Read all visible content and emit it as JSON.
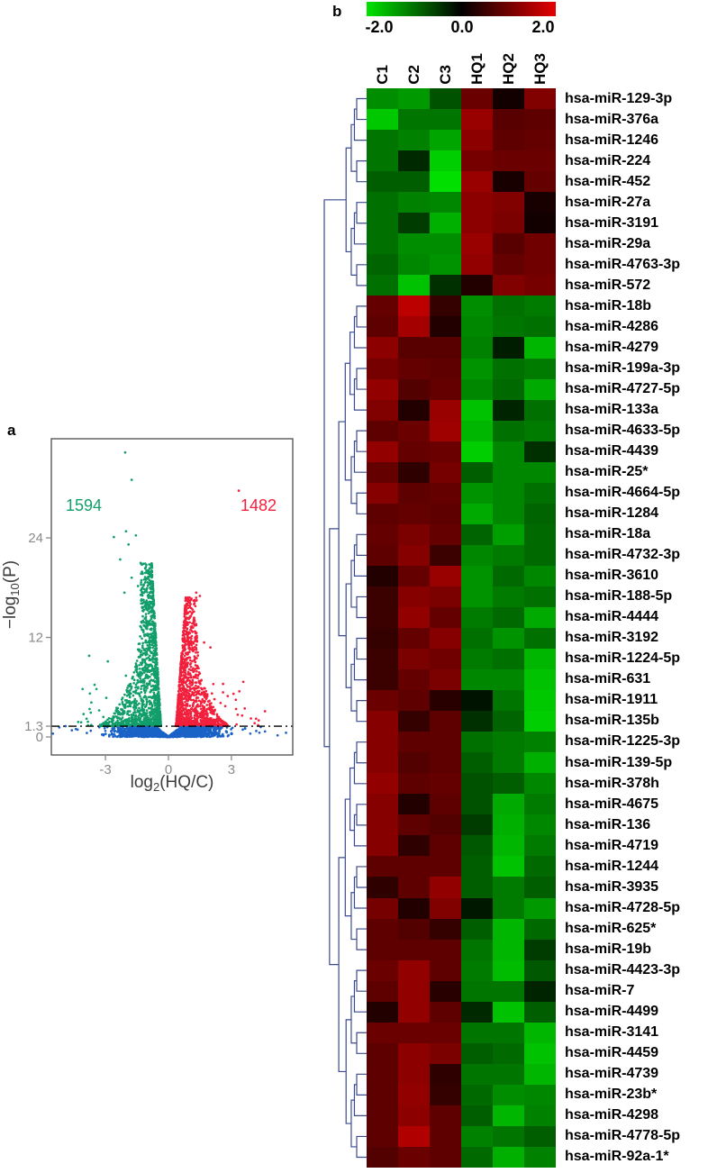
{
  "figure": {
    "panel_a_label": "a",
    "panel_b_label": "b"
  },
  "chart_data": [
    {
      "type": "scatter",
      "subtype": "volcano-plot",
      "xlabel": "log2(HQ/C)",
      "xlabel_parts": [
        "log",
        "2",
        "(HQ/C)"
      ],
      "ylabel": "-log10(P)",
      "ylabel_parts": [
        "−log",
        "10",
        "(P)"
      ],
      "xlim": [
        -5.6,
        5.9
      ],
      "ylim": [
        -2.2,
        36
      ],
      "xticks": [
        "-3",
        "0",
        "3"
      ],
      "xtick_values": [
        -3,
        0,
        3
      ],
      "yticks": [
        "0",
        "1.3",
        "12",
        "24"
      ],
      "ytick_values": [
        0,
        1.3,
        12,
        24
      ],
      "significance_threshold": 1.3,
      "grid": false,
      "annotations": {
        "down_label": "1594",
        "up_label": "1482"
      },
      "series": [
        {
          "name": "downregulated",
          "count": 1594,
          "color": "#129E6B"
        },
        {
          "name": "upregulated",
          "count": 1482,
          "color": "#F2203C"
        },
        {
          "name": "not_significant",
          "color": "#1A62C6"
        }
      ],
      "outliers": {
        "down": [
          [
            -2.06,
            34.3
          ],
          [
            -1.75,
            31.0
          ],
          [
            -2.6,
            24.1
          ],
          [
            -2.02,
            24.8
          ],
          [
            -1.55,
            24.3
          ],
          [
            -1.9,
            23.2
          ],
          [
            -2.3,
            21.4
          ],
          [
            -1.3,
            20.9
          ],
          [
            -1.75,
            19.2
          ],
          [
            -1.45,
            18.2
          ],
          [
            -2.1,
            17.4
          ],
          [
            -1.2,
            16.2
          ],
          [
            -3.3,
            3.2
          ],
          [
            -3.9,
            2.2
          ],
          [
            -4.3,
            1.8
          ]
        ],
        "up": [
          [
            3.35,
            29.7
          ],
          [
            1.32,
            17.4
          ],
          [
            1.5,
            17.0
          ],
          [
            1.22,
            16.0
          ],
          [
            1.05,
            12.9
          ],
          [
            1.35,
            12.2
          ],
          [
            2.0,
            10.8
          ],
          [
            1.7,
            11.4
          ],
          [
            4.3,
            2.0
          ],
          [
            4.6,
            3.1
          ],
          [
            3.1,
            5.2
          ],
          [
            2.6,
            6.4
          ]
        ],
        "ns": [
          [
            -5.5,
            0.4
          ],
          [
            5.6,
            0.5
          ],
          [
            -5.2,
            1.15
          ],
          [
            5.2,
            0.2
          ],
          [
            -4.9,
            1.3
          ],
          [
            4.4,
            1.2
          ],
          [
            -4.6,
            0.8
          ],
          [
            3.9,
            0.4
          ]
        ]
      },
      "point_cloud": {
        "down_main": 1549,
        "down_scatter": 30,
        "up_main": 1444,
        "up_scatter": 26,
        "ns": 1520,
        "seed": 1234
      },
      "colors": {
        "axis_text": "#8a8a8a",
        "title_text": "#3d3d3d",
        "box": "#4b4b4b",
        "threshold_line": "#000000"
      }
    },
    {
      "type": "heatmap",
      "colorbar": {
        "labels": [
          "-2.0",
          "0.0",
          "2.0"
        ],
        "range": [
          -2,
          2
        ],
        "min_color": "#00E400",
        "mid_color": "#000000",
        "max_color": "#E40000"
      },
      "columns": [
        "C1",
        "C2",
        "C3",
        "HQ1",
        "HQ2",
        "HQ3"
      ],
      "rows": [
        "hsa-miR-129-3p",
        "hsa-miR-376a",
        "hsa-miR-1246",
        "hsa-miR-224",
        "hsa-miR-452",
        "hsa-miR-27a",
        "hsa-miR-3191",
        "hsa-miR-29a",
        "hsa-miR-4763-3p",
        "hsa-miR-572",
        "hsa-miR-18b",
        "hsa-miR-4286",
        "hsa-miR-4279",
        "hsa-miR-199a-3p",
        "hsa-miR-4727-5p",
        "hsa-miR-133a",
        "hsa-miR-4633-5p",
        "hsa-miR-4439",
        "hsa-miR-25*",
        "hsa-miR-4664-5p",
        "hsa-miR-1284",
        "hsa-miR-18a",
        "hsa-miR-4732-3p",
        "hsa-miR-3610",
        "hsa-miR-188-5p",
        "hsa-miR-4444",
        "hsa-miR-3192",
        "hsa-miR-1224-5p",
        "hsa-miR-631",
        "hsa-miR-1911",
        "hsa-miR-135b",
        "hsa-miR-1225-3p",
        "hsa-miR-139-5p",
        "hsa-miR-378h",
        "hsa-miR-4675",
        "hsa-miR-136",
        "hsa-miR-4719",
        "hsa-miR-1244",
        "hsa-miR-3935",
        "hsa-miR-4728-5p",
        "hsa-miR-625*",
        "hsa-miR-19b",
        "hsa-miR-4423-3p",
        "hsa-miR-7",
        "hsa-miR-4499",
        "hsa-miR-3141",
        "hsa-miR-4459",
        "hsa-miR-4739",
        "hsa-miR-23b*",
        "hsa-miR-4298",
        "hsa-miR-4778-5p",
        "hsa-miR-92a-1*"
      ],
      "values": [
        [
          -1.2,
          -1.3,
          -0.7,
          0.9,
          0.15,
          1.1
        ],
        [
          -1.7,
          -1.0,
          -1.0,
          1.3,
          0.75,
          0.8
        ],
        [
          -1.0,
          -1.1,
          -1.4,
          1.2,
          0.8,
          0.85
        ],
        [
          -1.0,
          -0.35,
          -1.75,
          1.0,
          0.9,
          0.9
        ],
        [
          -0.8,
          -0.8,
          -1.9,
          1.3,
          0.2,
          0.85
        ],
        [
          -0.95,
          -1.1,
          -1.15,
          1.2,
          1.1,
          0.2
        ],
        [
          -0.95,
          -0.5,
          -1.5,
          1.2,
          1.05,
          0.15
        ],
        [
          -0.95,
          -1.2,
          -1.2,
          1.3,
          0.75,
          0.95
        ],
        [
          -0.85,
          -1.15,
          -1.25,
          1.25,
          0.85,
          0.95
        ],
        [
          -0.95,
          -1.65,
          -0.4,
          0.3,
          1.1,
          1.0
        ],
        [
          0.85,
          1.6,
          0.45,
          -1.2,
          -0.95,
          -1.05
        ],
        [
          0.8,
          1.4,
          0.3,
          -1.15,
          -1.0,
          -0.95
        ],
        [
          1.2,
          0.75,
          0.75,
          -1.1,
          -0.25,
          -1.55
        ],
        [
          1.0,
          0.85,
          0.8,
          -1.25,
          -0.95,
          -1.05
        ],
        [
          1.25,
          0.7,
          0.85,
          -1.15,
          -0.9,
          -1.45
        ],
        [
          1.1,
          0.3,
          1.3,
          -1.65,
          -0.3,
          -0.95
        ],
        [
          0.8,
          0.9,
          1.35,
          -1.55,
          -0.95,
          -1.05
        ],
        [
          1.25,
          0.85,
          0.9,
          -1.75,
          -1.15,
          -0.4
        ],
        [
          0.85,
          0.4,
          1.0,
          -0.8,
          -1.15,
          -1.15
        ],
        [
          1.15,
          0.8,
          0.85,
          -1.25,
          -1.15,
          -0.95
        ],
        [
          0.8,
          0.85,
          0.8,
          -1.45,
          -1.15,
          -0.85
        ],
        [
          0.85,
          1.05,
          0.85,
          -0.85,
          -1.35,
          -0.9
        ],
        [
          0.8,
          1.15,
          0.5,
          -1.15,
          -1.05,
          -0.9
        ],
        [
          0.3,
          0.85,
          1.3,
          -1.25,
          -0.9,
          -1.15
        ],
        [
          0.5,
          1.15,
          1.05,
          -1.25,
          -1.05,
          -0.95
        ],
        [
          0.5,
          1.25,
          0.85,
          -1.05,
          -0.9,
          -1.45
        ],
        [
          0.45,
          0.85,
          1.15,
          -0.95,
          -1.25,
          -0.95
        ],
        [
          0.5,
          1.05,
          0.95,
          -1.05,
          -0.95,
          -1.55
        ],
        [
          0.5,
          0.85,
          1.05,
          -1.15,
          -1.15,
          -1.65
        ],
        [
          0.9,
          0.8,
          0.35,
          -0.15,
          -1.0,
          -1.7
        ],
        [
          1.15,
          0.45,
          0.8,
          -0.4,
          -0.85,
          -1.75
        ],
        [
          1.15,
          0.8,
          0.8,
          -0.95,
          -1.05,
          -1.1
        ],
        [
          1.15,
          0.7,
          0.8,
          -0.8,
          -1.05,
          -1.5
        ],
        [
          1.25,
          0.8,
          0.85,
          -0.7,
          -0.8,
          -1.15
        ],
        [
          1.15,
          0.3,
          0.8,
          -0.7,
          -1.45,
          -1.05
        ],
        [
          1.15,
          0.8,
          0.7,
          -0.5,
          -1.5,
          -1.15
        ],
        [
          1.15,
          0.4,
          0.8,
          -0.75,
          -1.55,
          -1.05
        ],
        [
          0.8,
          0.8,
          0.8,
          -0.8,
          -1.65,
          -0.9
        ],
        [
          0.4,
          0.8,
          1.25,
          -0.8,
          -1.05,
          -0.8
        ],
        [
          1.0,
          0.3,
          1.1,
          -0.2,
          -1.05,
          -1.3
        ],
        [
          0.8,
          0.7,
          0.45,
          -0.8,
          -1.55,
          -0.9
        ],
        [
          0.8,
          0.8,
          0.8,
          -1.0,
          -1.55,
          -0.5
        ],
        [
          0.9,
          1.25,
          0.8,
          -1.05,
          -1.6,
          -0.75
        ],
        [
          0.8,
          1.25,
          0.35,
          -1.0,
          -1.0,
          -0.3
        ],
        [
          0.3,
          1.25,
          0.8,
          -0.35,
          -1.65,
          -0.8
        ],
        [
          0.9,
          0.9,
          0.9,
          -1.0,
          -1.0,
          -1.55
        ],
        [
          0.8,
          1.2,
          1.05,
          -0.8,
          -0.9,
          -1.65
        ],
        [
          0.8,
          1.2,
          0.4,
          -1.0,
          -1.0,
          -1.55
        ],
        [
          0.8,
          1.25,
          0.45,
          -0.9,
          -1.2,
          -1.15
        ],
        [
          0.8,
          1.2,
          0.8,
          -0.8,
          -1.55,
          -1.1
        ],
        [
          0.8,
          1.5,
          0.8,
          -1.1,
          -1.0,
          -0.8
        ],
        [
          0.7,
          0.9,
          0.8,
          -0.9,
          -1.5,
          -1.1
        ]
      ],
      "clusters": [
        [
          0,
          9
        ],
        [
          10,
          51
        ]
      ],
      "dendrogram_color": "#3A4A90"
    }
  ]
}
